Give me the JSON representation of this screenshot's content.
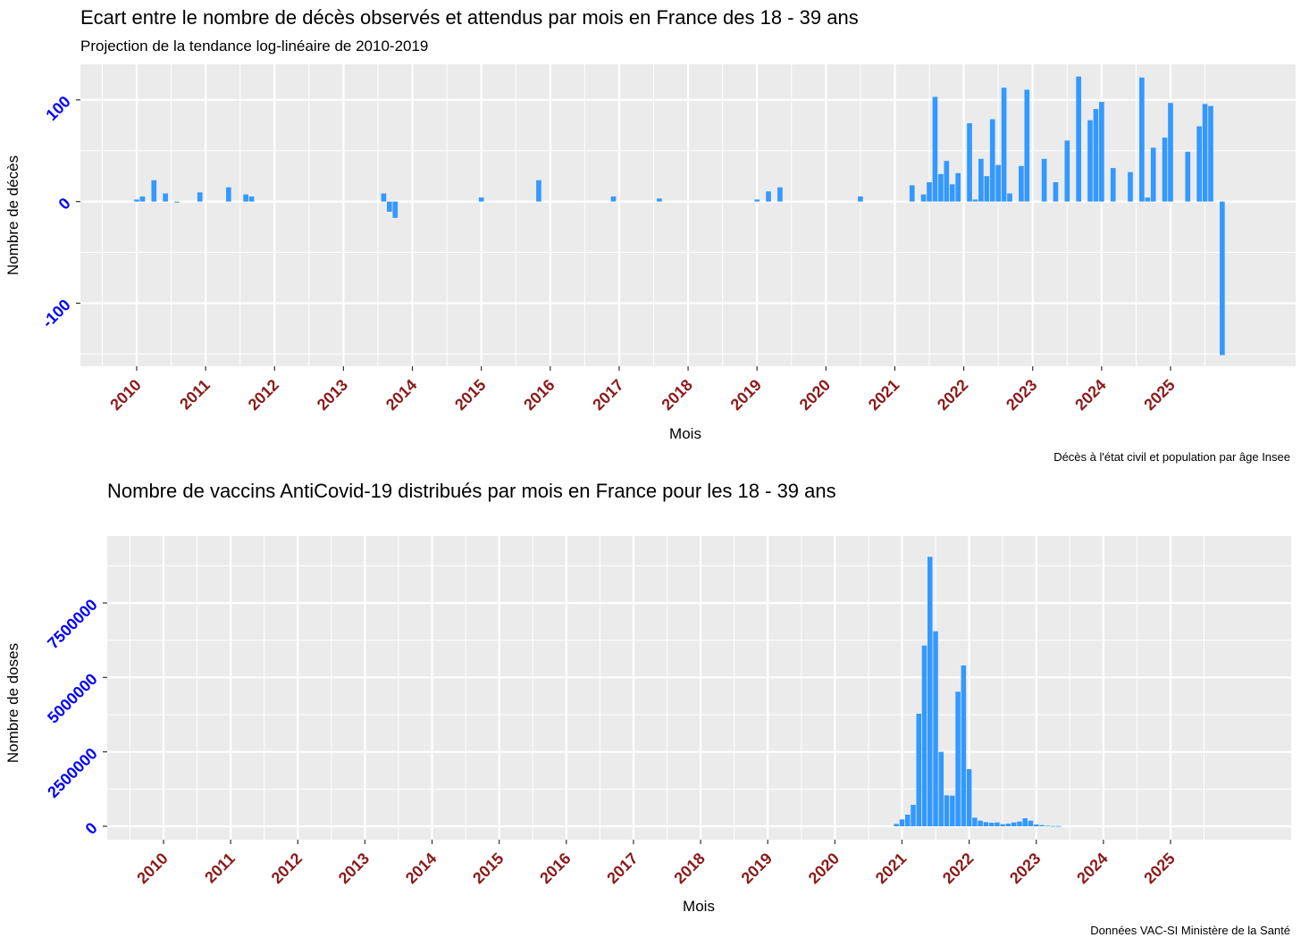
{
  "chart_data": [
    {
      "type": "bar",
      "title": "Ecart entre le nombre de décès observés et attendus par mois en France des 18 - 39 ans",
      "subtitle": "Projection de la tendance log-linéaire de 2010-2019",
      "xlabel": "Mois",
      "ylabel": "Nombre de décès",
      "caption": "Décès à l'état civil et population par âge Insee",
      "ylim": [
        -162,
        135
      ],
      "yticks": [
        -100,
        0,
        100
      ],
      "ytick_labels": [
        "-100",
        "0",
        "100"
      ],
      "xticks": [
        "2010",
        "2011",
        "2012",
        "2013",
        "2014",
        "2015",
        "2016",
        "2017",
        "2018",
        "2019",
        "2020",
        "2021",
        "2022",
        "2023",
        "2024",
        "2025"
      ],
      "grid": true,
      "bar_color": "#3399ff",
      "series": [
        {
          "x": [
            "2010-01",
            "2010-02",
            "2010-04",
            "2010-06",
            "2010-08",
            "2010-12",
            "2011-05",
            "2011-08",
            "2011-09",
            "2013-08",
            "2013-09",
            "2013-10",
            "2015-01",
            "2015-11",
            "2016-12",
            "2017-08",
            "2019-01",
            "2019-03",
            "2019-05",
            "2020-07",
            "2021-04",
            "2021-06",
            "2021-07",
            "2021-08",
            "2021-09",
            "2021-10",
            "2021-11",
            "2021-12",
            "2022-02",
            "2022-03",
            "2022-04",
            "2022-05",
            "2022-06",
            "2022-07",
            "2022-08",
            "2022-09",
            "2022-11",
            "2022-12",
            "2023-03",
            "2023-05",
            "2023-07",
            "2023-09",
            "2023-11",
            "2023-12",
            "2024-01",
            "2024-03",
            "2024-06",
            "2024-08",
            "2024-09",
            "2024-10",
            "2024-12",
            "2025-01",
            "2025-04",
            "2025-06",
            "2025-07",
            "2025-08",
            "2025-10"
          ],
          "values": [
            2,
            5,
            21,
            8,
            -1,
            9,
            14,
            7,
            5,
            8,
            -10,
            -16,
            4,
            21,
            5,
            3,
            2,
            10,
            14,
            5,
            16,
            7,
            19,
            103,
            27,
            40,
            17,
            28,
            77,
            2,
            42,
            25,
            81,
            36,
            112,
            8,
            35,
            110,
            42,
            19,
            60,
            123,
            80,
            91,
            98,
            33,
            29,
            122,
            4,
            53,
            63,
            97,
            49,
            74,
            96,
            94,
            -151
          ]
        }
      ]
    },
    {
      "type": "bar",
      "title": "Nombre de vaccins AntiCovid-19 distribués par mois en France pour les 18 - 39 ans",
      "xlabel": "Mois",
      "ylabel": "Nombre de doses",
      "caption": "Données VAC-SI Ministère de la Santé",
      "ylim": [
        -450000,
        9750000
      ],
      "yticks": [
        0,
        2500000,
        5000000,
        7500000
      ],
      "ytick_labels": [
        "0",
        "2500000",
        "5000000",
        "7500000"
      ],
      "xticks": [
        "2010",
        "2011",
        "2012",
        "2013",
        "2014",
        "2015",
        "2016",
        "2017",
        "2018",
        "2019",
        "2020",
        "2021",
        "2022",
        "2023",
        "2024",
        "2025"
      ],
      "grid": true,
      "bar_color": "#3399ff",
      "series": [
        {
          "x": [
            "2020-12",
            "2021-01",
            "2021-02",
            "2021-03",
            "2021-04",
            "2021-05",
            "2021-06",
            "2021-07",
            "2021-08",
            "2021-09",
            "2021-10",
            "2021-11",
            "2021-12",
            "2022-01",
            "2022-02",
            "2022-03",
            "2022-04",
            "2022-05",
            "2022-06",
            "2022-07",
            "2022-08",
            "2022-09",
            "2022-10",
            "2022-11",
            "2022-12",
            "2023-01",
            "2023-02",
            "2023-03",
            "2023-04",
            "2023-05"
          ],
          "values": [
            80000,
            230000,
            390000,
            720000,
            3780000,
            6070000,
            9050000,
            6550000,
            2500000,
            1040000,
            1030000,
            4520000,
            5400000,
            1920000,
            290000,
            190000,
            140000,
            120000,
            130000,
            70000,
            90000,
            130000,
            160000,
            270000,
            190000,
            60000,
            40000,
            20000,
            10000,
            10000
          ]
        }
      ]
    }
  ]
}
